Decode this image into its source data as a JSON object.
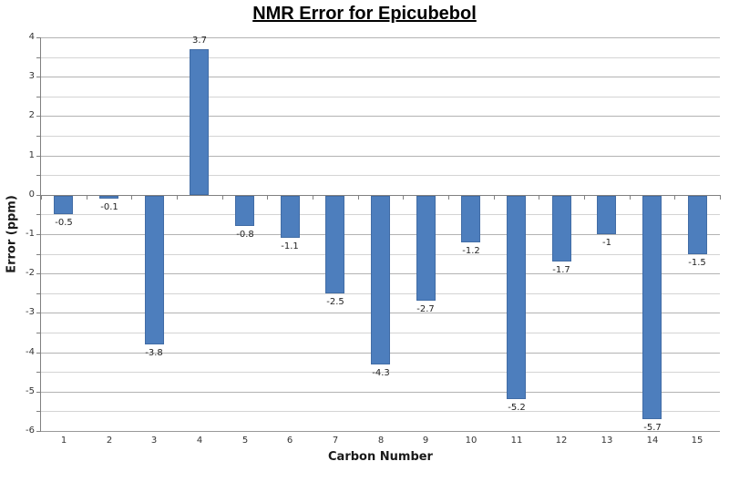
{
  "chart_data": {
    "type": "bar",
    "title": "NMR Error for Epicubebol",
    "xlabel": "Carbon Number",
    "ylabel": "Error (ppm)",
    "categories": [
      "1",
      "2",
      "3",
      "4",
      "5",
      "6",
      "7",
      "8",
      "9",
      "10",
      "11",
      "12",
      "13",
      "14",
      "15"
    ],
    "values": [
      -0.5,
      -0.1,
      -3.8,
      3.7,
      -0.8,
      -1.1,
      -2.5,
      -4.3,
      -2.7,
      -1.2,
      -5.2,
      -1.7,
      -1,
      -5.7,
      -1.5
    ],
    "data_labels": [
      "-0.5",
      "-0.1",
      "-3.8",
      "3.7",
      "-0.8",
      "-1.1",
      "-2.5",
      "-4.3",
      "-2.7",
      "-1.2",
      "-5.2",
      "-1.7",
      "-1",
      "-5.7",
      "-1.5"
    ],
    "ylim": [
      -6,
      4
    ],
    "y_tick_labels": [
      "4",
      "3",
      "2",
      "1",
      "0",
      "-1",
      "-2",
      "-3",
      "-4",
      "-5",
      "-6"
    ],
    "y_major_unit": 1,
    "y_minor_unit": 0.5,
    "grid": true,
    "legend": "none",
    "series_name": "NMR Error",
    "colors": {
      "bar_fill": "#4D7EBD",
      "bar_border": "#416CA5",
      "axis_line": "#808080",
      "gridline_major": "#B3B3B3",
      "gridline_minor": "#D4D4D4",
      "zero_line": "#808080",
      "bottom_line": "#999999",
      "label_text": "#1F1F1F"
    }
  }
}
